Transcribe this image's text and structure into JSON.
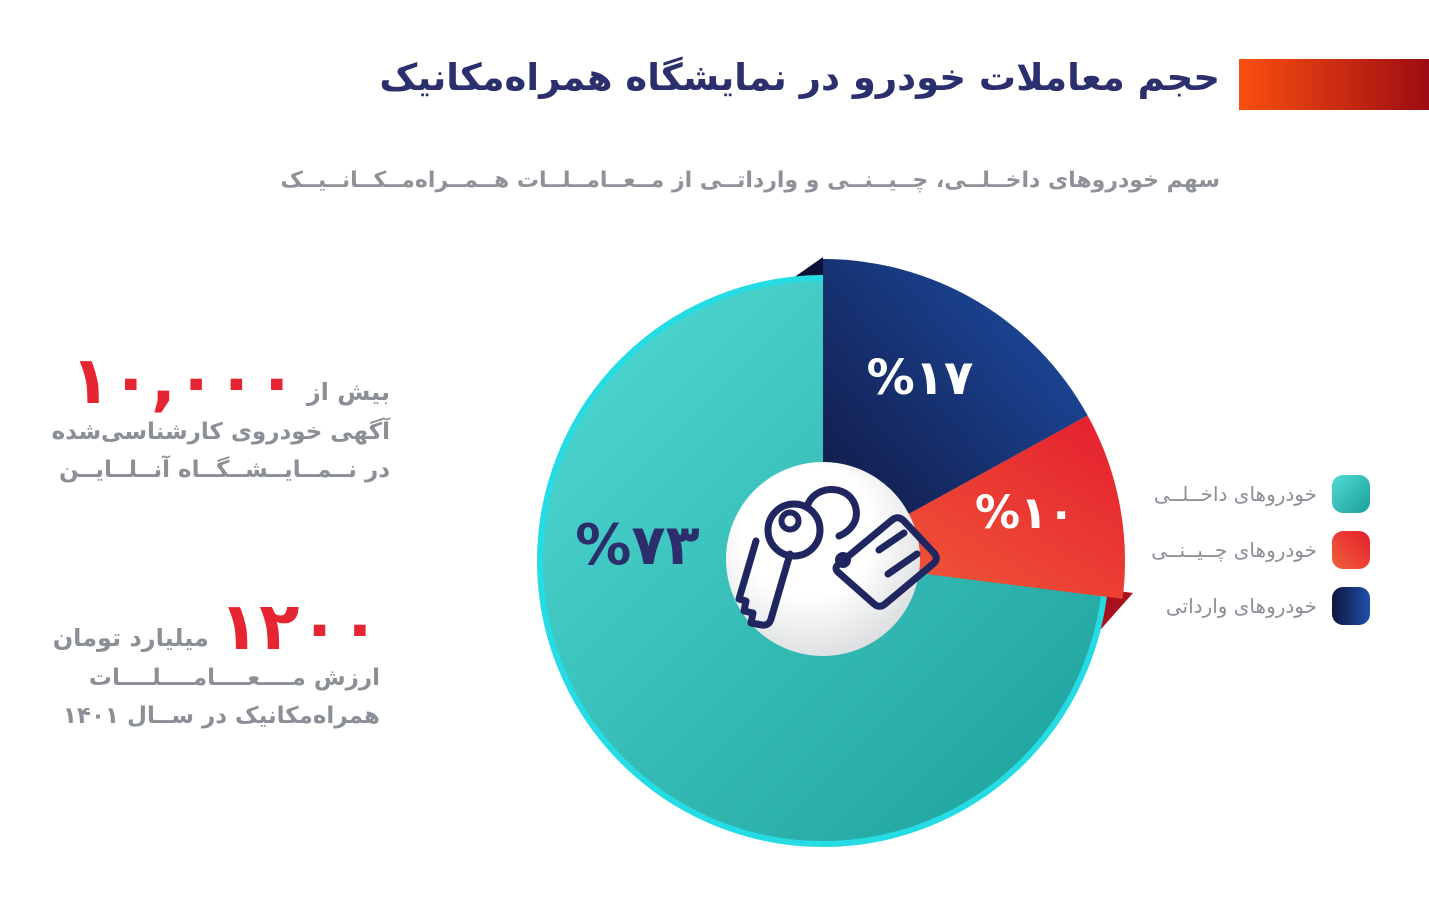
{
  "header": {
    "title": "حجم معاملات خودرو در نمایشگاه همراه‌مکانیک",
    "subtitle": "سهم خودروهای داخــلــی، چــیــنــی و وارداتــی از مــعــامــلــات هــمــراه‌مــکــانــیــک"
  },
  "stats": [
    {
      "prefix": "بیش از",
      "number": "۱۰,۰۰۰",
      "line1": "آگهی خودروی کارشناسی‌شده",
      "line2": "در نــمــایــشــگــاه آنــلــایــن"
    },
    {
      "number": "۱۲۰۰",
      "unit": "میلیارد تومان",
      "line1": "ارزش مــــعــــامــــلــــات",
      "line2": "همراه‌مکانیک در ســال ۱۴۰۱"
    }
  ],
  "chart_data": {
    "type": "pie",
    "title": "حجم معاملات خودرو در نمایشگاه همراه‌مکانیک",
    "subtitle": "سهم خودروهای داخلی، چینی و وارداتی از معاملات همراه‌مکانیک",
    "unit": "percent",
    "start_angle_deg": 0,
    "direction": "clockwise",
    "order_clockwise_from_top": [
      "imported",
      "chinese",
      "domestic"
    ],
    "exploded_order": [
      "imported",
      "chinese"
    ],
    "legend_position": "right",
    "center_icon": "car-key-with-price-tag-icon",
    "segments": [
      {
        "id": "domestic",
        "label": "خودروهای داخــلــی",
        "value": 73,
        "display": "%۷۳",
        "color_start": "#52dbd5",
        "color_end": "#1b9e99"
      },
      {
        "id": "chinese",
        "label": "خودروهای چــیــنــی",
        "value": 10,
        "display": "%۱۰",
        "color_start": "#f2603a",
        "color_end": "#e41e2e"
      },
      {
        "id": "imported",
        "label": "خودروهای وارداتی",
        "value": 17,
        "display": "%۱۷",
        "color_start": "#10153d",
        "color_end": "#1e51ab"
      }
    ]
  },
  "colors": {
    "title_navy": "#2c2f6d",
    "text_gray": "#8b8f96",
    "stat_red": "#e52531",
    "accent_bar_start": "#fb4f10",
    "accent_bar_end": "#9c0c12",
    "pie_rim_cyan": "#25dce4",
    "pct_label_navy": "#2b2e6b",
    "icon_navy": "#20265f"
  }
}
